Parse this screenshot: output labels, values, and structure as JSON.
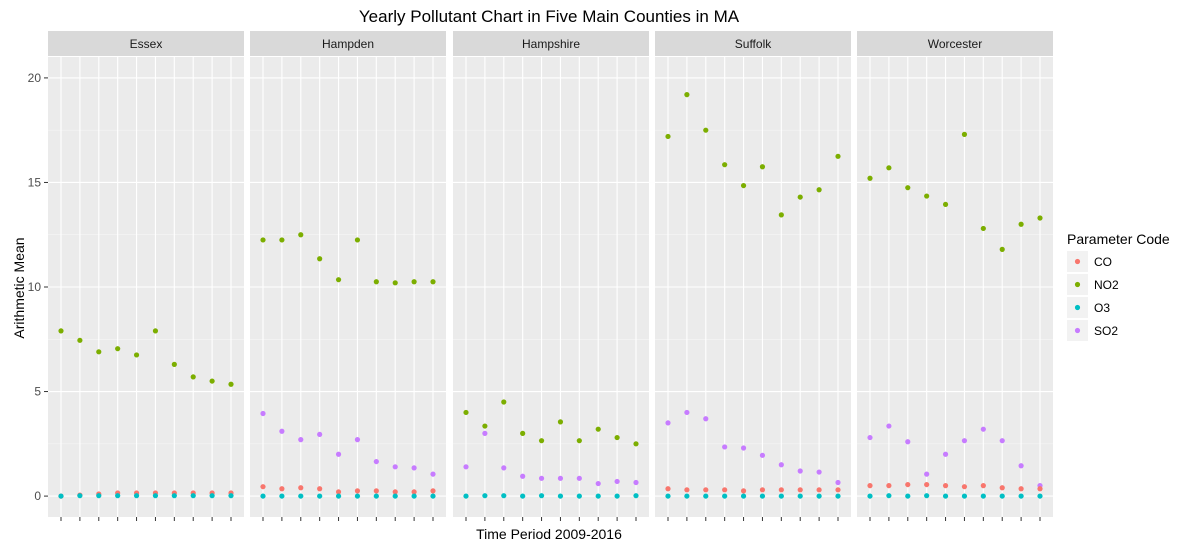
{
  "chart_data": {
    "type": "scatter",
    "title": "Yearly Pollutant Chart in Five Main Counties in MA",
    "xlabel": "Time Period 2009-2016",
    "ylabel": "Arithmetic Mean",
    "ylim": [
      -1,
      21
    ],
    "yticks": [
      0,
      5,
      10,
      15,
      20
    ],
    "x_count": 10,
    "grid": true,
    "legend": {
      "title": "Parameter Code",
      "position": "right",
      "items": [
        {
          "name": "CO",
          "color": "#F8766D"
        },
        {
          "name": "NO2",
          "color": "#7CAE00"
        },
        {
          "name": "O3",
          "color": "#00BFC4"
        },
        {
          "name": "SO2",
          "color": "#C77CFF"
        }
      ]
    },
    "panels": [
      {
        "label": "Essex",
        "series": [
          {
            "name": "CO",
            "values": [
              0.0,
              0.05,
              0.1,
              0.15,
              0.15,
              0.15,
              0.15,
              0.15,
              0.15,
              0.15
            ]
          },
          {
            "name": "NO2",
            "values": [
              7.9,
              7.45,
              6.9,
              7.05,
              6.75,
              7.9,
              6.3,
              5.7,
              5.5,
              5.35
            ]
          },
          {
            "name": "O3",
            "values": [
              0.0,
              0.02,
              0.02,
              0.02,
              0.02,
              0.02,
              0.02,
              0.02,
              0.02,
              0.02
            ]
          },
          {
            "name": "SO2",
            "values": []
          }
        ]
      },
      {
        "label": "Hampden",
        "series": [
          {
            "name": "CO",
            "values": [
              0.45,
              0.35,
              0.4,
              0.35,
              0.2,
              0.25,
              0.25,
              0.2,
              0.2,
              0.25
            ]
          },
          {
            "name": "NO2",
            "values": [
              12.25,
              12.25,
              12.5,
              11.35,
              10.35,
              12.25,
              10.25,
              10.2,
              10.25,
              10.25
            ]
          },
          {
            "name": "O3",
            "values": [
              0.0,
              0.0,
              0.0,
              0.0,
              0.0,
              0.0,
              0.0,
              0.0,
              0.0,
              0.0
            ]
          },
          {
            "name": "SO2",
            "values": [
              3.95,
              3.1,
              2.7,
              2.95,
              2.0,
              2.7,
              1.65,
              1.4,
              1.35,
              1.05
            ]
          }
        ]
      },
      {
        "label": "Hampshire",
        "series": [
          {
            "name": "CO",
            "values": []
          },
          {
            "name": "NO2",
            "values": [
              4.0,
              3.35,
              4.5,
              3.0,
              2.65,
              3.55,
              2.65,
              3.2,
              2.8,
              2.5
            ]
          },
          {
            "name": "O3",
            "values": [
              0.0,
              0.02,
              0.02,
              0.0,
              0.02,
              0.0,
              0.0,
              0.0,
              0.0,
              0.02
            ]
          },
          {
            "name": "SO2",
            "values": [
              1.4,
              3.0,
              1.35,
              0.95,
              0.85,
              0.85,
              0.85,
              0.6,
              0.7,
              0.65
            ]
          }
        ]
      },
      {
        "label": "Suffolk",
        "series": [
          {
            "name": "CO",
            "values": [
              0.35,
              0.3,
              0.3,
              0.3,
              0.25,
              0.3,
              0.3,
              0.3,
              0.3,
              0.3
            ]
          },
          {
            "name": "NO2",
            "values": [
              17.2,
              19.2,
              17.5,
              15.85,
              14.85,
              15.75,
              13.45,
              14.3,
              14.65,
              16.25
            ]
          },
          {
            "name": "O3",
            "values": [
              0.0,
              0.0,
              0.0,
              0.0,
              0.0,
              0.0,
              0.0,
              0.0,
              0.0,
              0.0
            ]
          },
          {
            "name": "SO2",
            "values": [
              3.5,
              4.0,
              3.7,
              2.35,
              2.3,
              1.95,
              1.5,
              1.2,
              1.15,
              0.65
            ]
          }
        ]
      },
      {
        "label": "Worcester",
        "series": [
          {
            "name": "CO",
            "values": [
              0.5,
              0.5,
              0.55,
              0.55,
              0.5,
              0.45,
              0.5,
              0.4,
              0.35,
              0.35
            ]
          },
          {
            "name": "NO2",
            "values": [
              15.2,
              15.7,
              14.75,
              14.35,
              13.95,
              17.3,
              12.8,
              11.8,
              13.0,
              13.3
            ]
          },
          {
            "name": "O3",
            "values": [
              0.0,
              0.02,
              0.0,
              0.02,
              0.0,
              0.0,
              0.0,
              0.0,
              0.0,
              0.0
            ]
          },
          {
            "name": "SO2",
            "values": [
              2.8,
              3.35,
              2.6,
              1.05,
              2.0,
              2.65,
              3.2,
              2.65,
              1.45,
              0.5
            ]
          }
        ]
      }
    ]
  }
}
